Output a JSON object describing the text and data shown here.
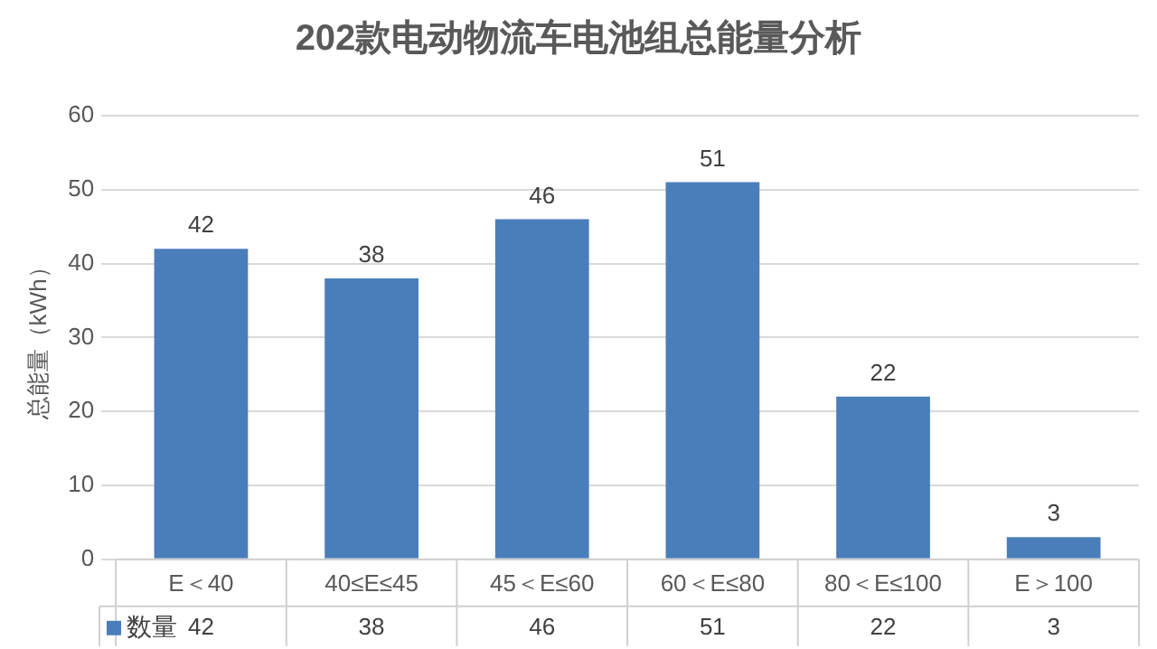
{
  "chart_data": {
    "type": "bar",
    "title": "202款电动物流车电池组总能量分析",
    "ylabel": "总能量（kWh）",
    "categories": [
      "E＜40",
      "40≤E≤45",
      "45＜E≤60",
      "60＜E≤80",
      "80＜E≤100",
      "E＞100"
    ],
    "series": [
      {
        "name": "数量",
        "color": "#4a7ebb",
        "values": [
          42,
          38,
          46,
          51,
          22,
          3
        ]
      }
    ],
    "ylim": [
      0,
      60
    ],
    "yticks": [
      0,
      10,
      20,
      30,
      40,
      50,
      60
    ],
    "grid": "y",
    "legend": "bottom",
    "data_labels": true,
    "annotations": [
      "42",
      "38",
      "46",
      "51",
      "22",
      "3"
    ]
  }
}
